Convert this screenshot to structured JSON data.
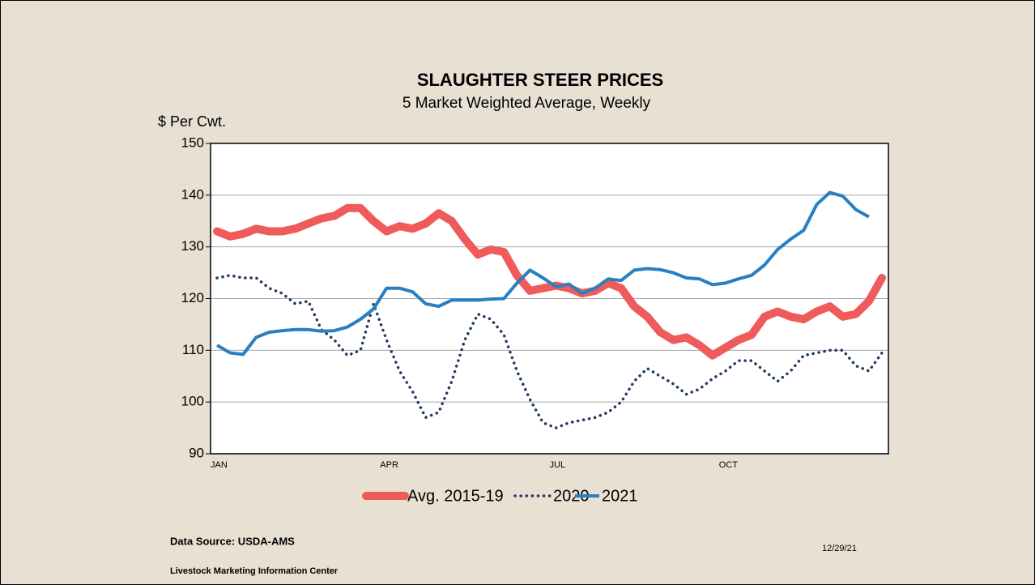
{
  "chart_data": {
    "type": "line",
    "title": "SLAUGHTER STEER PRICES",
    "subtitle": "5 Market Weighted Average, Weekly",
    "y_label": "$ Per Cwt.",
    "categories": [
      "JAN",
      null,
      null,
      null,
      null,
      null,
      null,
      null,
      null,
      null,
      null,
      null,
      null,
      "APR",
      null,
      null,
      null,
      null,
      null,
      null,
      null,
      null,
      null,
      null,
      null,
      null,
      "JUL",
      null,
      null,
      null,
      null,
      null,
      null,
      null,
      null,
      null,
      null,
      null,
      null,
      "OCT",
      null,
      null,
      null,
      null,
      null,
      null,
      null,
      null,
      null,
      null,
      null,
      null
    ],
    "series": [
      {
        "name": "Avg. 2015-19",
        "color": "#ef5b5b",
        "values": [
          133,
          132,
          132.5,
          133.5,
          133,
          133,
          133.5,
          134.5,
          135.5,
          136,
          137.5,
          137.5,
          135,
          133,
          134,
          133.5,
          134.5,
          136.5,
          135,
          131.5,
          128.5,
          129.5,
          129,
          124.5,
          121.5,
          122,
          122.5,
          122,
          121,
          121.5,
          123,
          122,
          118.5,
          116.5,
          113.5,
          112,
          112.5,
          111,
          109,
          110.5,
          112,
          113,
          116.5,
          117.5,
          116.5,
          116,
          117.5,
          118.5,
          116.5,
          117,
          119.5,
          124
        ]
      },
      {
        "name": "2020",
        "color": "#1f3864",
        "linestyle": "dotted",
        "values": [
          124,
          124.5,
          124,
          124,
          122,
          121,
          119,
          119.5,
          114,
          112,
          109,
          110,
          119,
          112,
          106,
          102,
          97,
          98,
          104,
          112,
          117,
          116,
          113,
          106,
          100.5,
          96,
          95,
          96,
          96.5,
          97,
          98,
          100,
          104,
          106.5,
          105,
          103.5,
          101.5,
          102.5,
          104.5,
          106,
          108,
          108,
          106,
          104,
          106,
          109,
          109.5,
          110,
          110,
          107,
          106,
          109.5
        ]
      },
      {
        "name": "2021",
        "color": "#2a7fc1",
        "values": [
          111,
          109.5,
          109.2,
          112.5,
          113.5,
          113.8,
          114,
          114,
          113.7,
          113.8,
          114.5,
          116,
          118,
          122,
          122,
          121.3,
          119,
          118.5,
          119.7,
          119.7,
          119.7,
          119.9,
          120,
          123,
          125.5,
          124,
          122.3,
          122.8,
          121,
          122,
          123.8,
          123.5,
          125.5,
          125.8,
          125.6,
          125,
          124,
          123.8,
          122.7,
          123,
          123.8,
          124.5,
          126.5,
          129.5,
          131.5,
          133.2,
          138.2,
          140.5,
          139.8,
          137.2,
          135.8,
          null
        ]
      }
    ],
    "ylim": [
      90,
      150
    ],
    "yticks": [
      90,
      100,
      110,
      120,
      130,
      140,
      150
    ],
    "grid": true,
    "legend": "bottom",
    "source": "Data Source:  USDA-AMS",
    "organization": "Livestock Marketing Information Center",
    "date": "12/29/21"
  }
}
